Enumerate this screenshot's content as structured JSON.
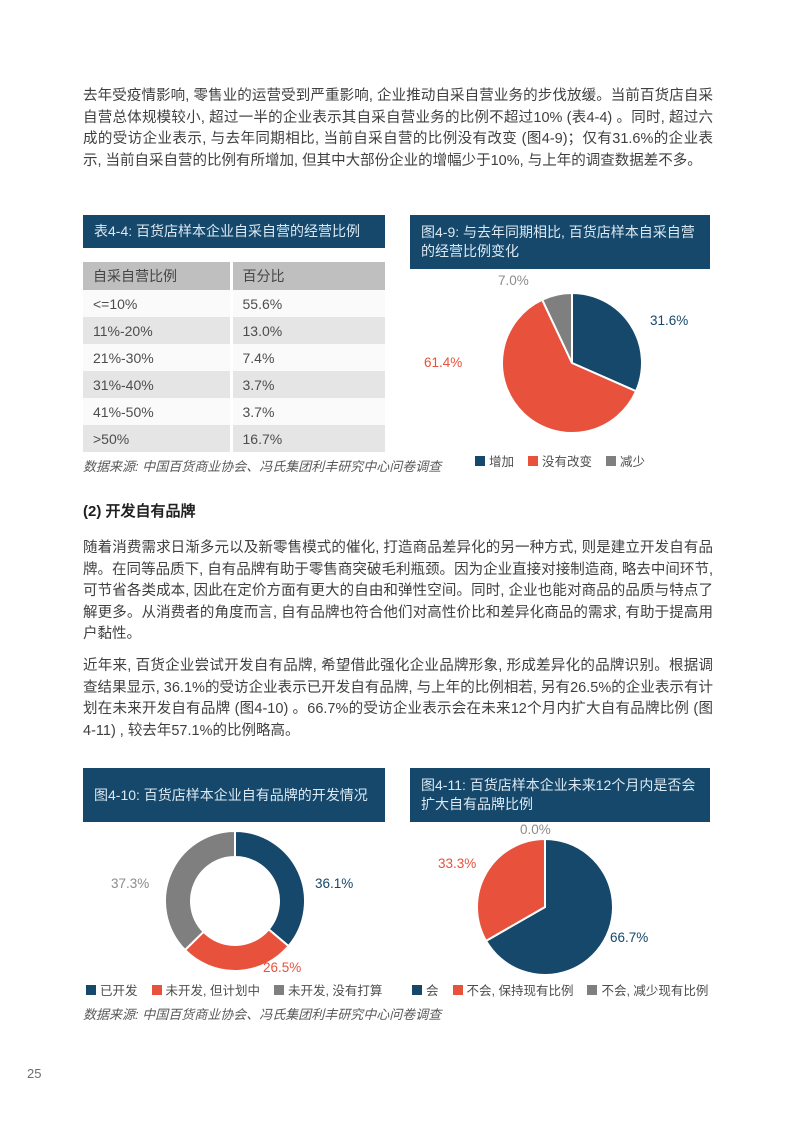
{
  "page": {
    "number": "25"
  },
  "colors": {
    "navy": "#15486B",
    "red": "#E8513C",
    "gray": "#7F7F7F"
  },
  "paragraphs": {
    "p1": "去年受疫情影响, 零售业的运营受到严重影响, 企业推动自采自营业务的步伐放缓。当前百货店自采自营总体规模较小, 超过一半的企业表示其自采自营业务的比例不超过10% (表4-4) 。同时, 超过六成的受访企业表示, 与去年同期相比, 当前自采自营的比例没有改变 (图4-9)；仅有31.6%的企业表示, 当前自采自营的比例有所增加, 但其中大部份企业的增幅少于10%, 与上年的调查数据差不多。",
    "section2_heading": "(2) 开发自有品牌",
    "p2": "随着消费需求日渐多元以及新零售模式的催化, 打造商品差异化的另一种方式, 则是建立开发自有品牌。在同等品质下, 自有品牌有助于零售商突破毛利瓶颈。因为企业直接对接制造商, 略去中间环节, 可节省各类成本, 因此在定价方面有更大的自由和弹性空间。同时, 企业也能对商品的品质与特点了解更多。从消费者的角度而言, 自有品牌也符合他们对高性价比和差异化商品的需求, 有助于提高用户黏性。",
    "p3": "近年来, 百货企业尝试开发自有品牌, 希望借此强化企业品牌形象, 形成差异化的品牌识别。根据调查结果显示, 36.1%的受访企业表示已开发自有品牌, 与上年的比例相若, 另有26.5%的企业表示有计划在未来开发自有品牌 (图4-10) 。66.7%的受访企业表示会在未来12个月内扩大自有品牌比例 (图4-11) , 较去年57.1%的比例略高。"
  },
  "table4_4": {
    "title": "表4-4: 百货店样本企业自采自营的经营比例",
    "headers": [
      "自采自营比例",
      "百分比"
    ],
    "rows": [
      [
        "<=10%",
        "55.6%"
      ],
      [
        "11%-20%",
        "13.0%"
      ],
      [
        "21%-30%",
        "7.4%"
      ],
      [
        "31%-40%",
        "3.7%"
      ],
      [
        "41%-50%",
        "3.7%"
      ],
      [
        ">50%",
        "16.7%"
      ]
    ],
    "source": "数据来源: 中国百货商业协会、冯氏集团利丰研究中心问卷调查"
  },
  "chart_data": [
    {
      "id": "fig4-9",
      "type": "pie",
      "title": "图4-9: 与去年同期相比, 百货店样本自采自营的经营比例变化",
      "labels": [
        "增加",
        "没有改变",
        "减少"
      ],
      "values": [
        31.6,
        61.4,
        7.0
      ],
      "data_labels": [
        "31.6%",
        "61.4%",
        "7.0%"
      ],
      "colors": [
        "#15486B",
        "#E8513C",
        "#7F7F7F"
      ],
      "start_angle": "top",
      "direction": "clockwise",
      "legend_position": "bottom"
    },
    {
      "id": "fig4-10",
      "type": "donut",
      "title": "图4-10: 百货店样本企业自有品牌的开发情况",
      "labels": [
        "已开发",
        "未开发, 但计划中",
        "未开发, 没有打算"
      ],
      "values": [
        36.1,
        26.5,
        37.3
      ],
      "data_labels": [
        "36.1%",
        "26.5%",
        "37.3%"
      ],
      "colors": [
        "#15486B",
        "#E8513C",
        "#7F7F7F"
      ],
      "start_angle": "top",
      "direction": "clockwise",
      "legend_position": "bottom"
    },
    {
      "id": "fig4-11",
      "type": "pie",
      "title": "图4-11: 百货店样本企业未来12个月内是否会扩大自有品牌比例",
      "labels": [
        "会",
        "不会, 保持现有比例",
        "不会, 减少现有比例"
      ],
      "values": [
        66.7,
        33.3,
        0.0
      ],
      "data_labels": [
        "66.7%",
        "33.3%",
        "0.0%"
      ],
      "colors": [
        "#15486B",
        "#E8513C",
        "#7F7F7F"
      ],
      "start_angle": "top",
      "direction": "clockwise",
      "legend_position": "bottom"
    }
  ],
  "source_bottom": "数据来源: 中国百货商业协会、冯氏集团利丰研究中心问卷调查"
}
